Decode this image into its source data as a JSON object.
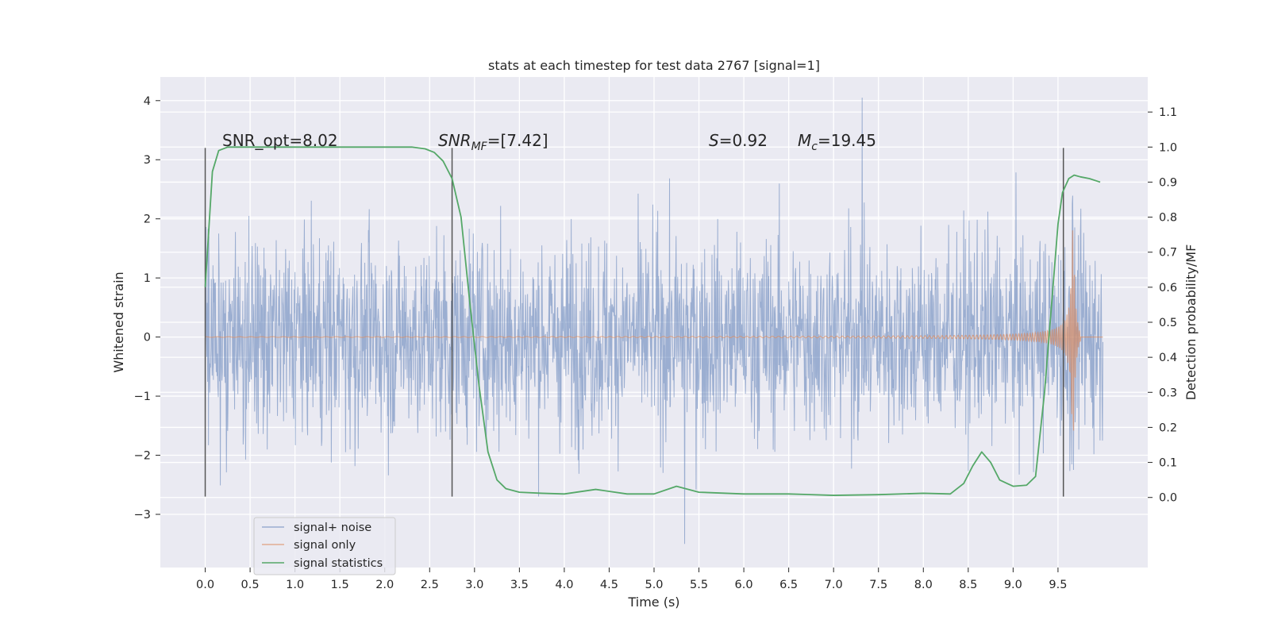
{
  "chart_data": {
    "type": "line",
    "title": "stats at each timestep for test data 2767 [signal=1]",
    "xlabel": "Time (s)",
    "ylabel": "Whitened strain",
    "ylabel_right": "Detection probability/MF",
    "xlim": [
      -0.5,
      10.5
    ],
    "ylim": [
      -3.9,
      4.4
    ],
    "ylim_right": [
      -0.2,
      1.2
    ],
    "x_ticks": [
      "0.0",
      "0.5",
      "1.0",
      "1.5",
      "2.0",
      "2.5",
      "3.0",
      "3.5",
      "4.0",
      "4.5",
      "5.0",
      "5.5",
      "6.0",
      "6.5",
      "7.0",
      "7.5",
      "8.0",
      "8.5",
      "9.0",
      "9.5"
    ],
    "y_ticks": [
      "−3",
      "−2",
      "−1",
      "0",
      "1",
      "2",
      "3",
      "4"
    ],
    "y_ticks_right": [
      "0.0",
      "0.1",
      "0.2",
      "0.3",
      "0.4",
      "0.5",
      "0.6",
      "0.7",
      "0.8",
      "0.9",
      "1.0",
      "1.1"
    ],
    "grid": true,
    "legend_position": "lower-left",
    "annotations": {
      "snr_opt": "SNR_opt=8.02",
      "snr_mf_main": "SNR",
      "snr_mf_sub": "MF",
      "snr_mf_value": "=[7.42]",
      "s_sym": "S",
      "s_value": "=0.92",
      "mc_sym": "M",
      "mc_sub": "c",
      "mc_value": "=19.45"
    },
    "vertical_lines": {
      "x": [
        0.0,
        2.75,
        9.56
      ],
      "y_range": [
        -2.7,
        3.2
      ]
    },
    "series": [
      {
        "name": "signal+ noise",
        "color": "#4c72b0",
        "opacity": 0.5,
        "x_range": [
          0.0,
          10.0
        ],
        "band_mean": 0.0,
        "band_sd": 0.85,
        "max_peak": 4.05,
        "min_peak": -3.5
      },
      {
        "name": "signal only",
        "color": "#dd8452",
        "opacity": 0.6,
        "x_range": [
          0.0,
          10.0
        ],
        "chirp_peak_time": 9.67,
        "chirp_peak_amplitude": 1.9
      },
      {
        "name": "signal statistics",
        "color": "#55a868",
        "axis": "right",
        "x": [
          0.0,
          0.08,
          0.15,
          0.25,
          0.5,
          1.0,
          1.5,
          2.0,
          2.3,
          2.45,
          2.55,
          2.65,
          2.75,
          2.85,
          2.95,
          3.05,
          3.15,
          3.25,
          3.35,
          3.5,
          3.75,
          4.0,
          4.35,
          4.7,
          5.0,
          5.25,
          5.5,
          6.0,
          6.5,
          7.0,
          7.5,
          8.0,
          8.3,
          8.45,
          8.55,
          8.65,
          8.75,
          8.85,
          9.0,
          9.15,
          9.25,
          9.35,
          9.45,
          9.5,
          9.55,
          9.62,
          9.68,
          9.75,
          9.85,
          9.97
        ],
        "y": [
          0.6,
          0.93,
          0.99,
          1.0,
          1.0,
          1.0,
          1.0,
          1.0,
          1.0,
          0.995,
          0.985,
          0.96,
          0.91,
          0.8,
          0.55,
          0.32,
          0.13,
          0.05,
          0.025,
          0.015,
          0.012,
          0.01,
          0.023,
          0.01,
          0.01,
          0.032,
          0.015,
          0.01,
          0.01,
          0.006,
          0.008,
          0.012,
          0.01,
          0.04,
          0.09,
          0.13,
          0.1,
          0.05,
          0.032,
          0.035,
          0.06,
          0.3,
          0.62,
          0.78,
          0.87,
          0.91,
          0.92,
          0.915,
          0.91,
          0.9
        ]
      }
    ]
  }
}
